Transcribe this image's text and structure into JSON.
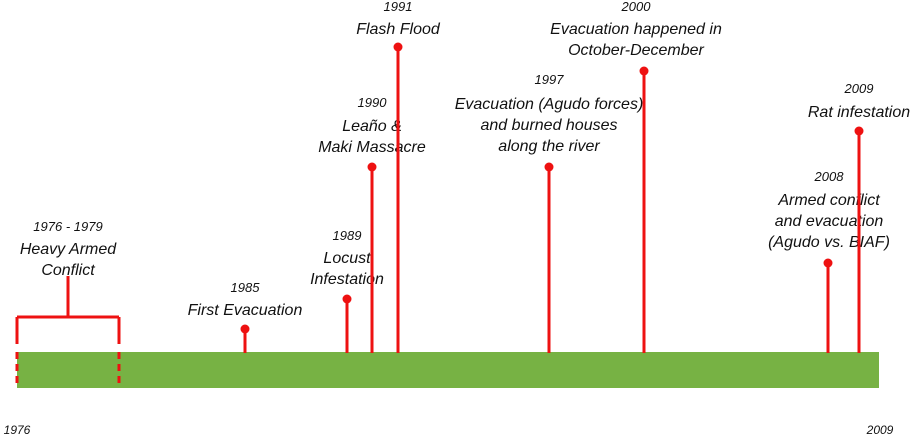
{
  "timeline": {
    "start_label": "1976",
    "end_label": "2009",
    "bar_color": "#77b244",
    "marker_color": "#ee1111",
    "range_event": {
      "year": "1976 - 1979",
      "label_lines": [
        "Heavy Armed",
        "Conflict"
      ]
    },
    "events": [
      {
        "year": "1985",
        "label_lines": [
          "First Evacuation"
        ]
      },
      {
        "year": "1989",
        "label_lines": [
          "Locust",
          "Infestation"
        ]
      },
      {
        "year": "1990",
        "label_lines": [
          "Leaño &",
          "Maki Massacre"
        ]
      },
      {
        "year": "1991",
        "label_lines": [
          "Flash Flood"
        ]
      },
      {
        "year": "1997",
        "label_lines": [
          "Evacuation (Agudo forces)",
          "and burned houses",
          "along the river"
        ]
      },
      {
        "year": "2000",
        "label_lines": [
          "Evacuation happened in",
          "October-December"
        ]
      },
      {
        "year": "2008",
        "label_lines": [
          "Armed conflict",
          "and evacuation",
          "(Agudo vs. BIAF)"
        ]
      },
      {
        "year": "2009",
        "label_lines": [
          "Rat infestation"
        ]
      }
    ]
  }
}
